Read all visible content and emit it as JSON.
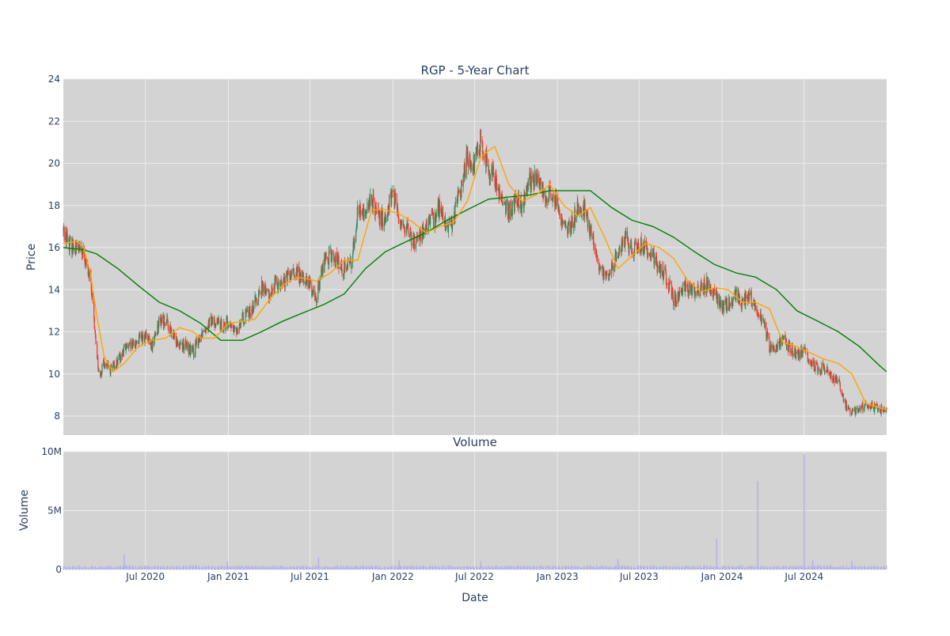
{
  "chart_data": [
    {
      "type": "candlestick",
      "title": "RGP - 5-Year Chart",
      "xlabel": "",
      "ylabel": "Price",
      "ylim": [
        7.1,
        24
      ],
      "yticks": [
        8,
        10,
        12,
        14,
        16,
        18,
        20,
        22,
        24
      ],
      "xlim": [
        "2020-01-01",
        "2024-12-31"
      ],
      "grid": true,
      "colors": {
        "plot_bg": "#d3d3d3",
        "grid": "#ebebeb",
        "increasing": "#2e8b57",
        "decreasing": "#ef3b2c",
        "ma_short": "#ffa500",
        "ma_long": "#008000",
        "text": "#2a3f5f"
      },
      "series": [
        {
          "kind": "close",
          "dates": [
            "2020-01-01",
            "2020-01-15",
            "2020-02-01",
            "2020-02-15",
            "2020-03-01",
            "2020-03-10",
            "2020-03-20",
            "2020-04-01",
            "2020-04-15",
            "2020-05-01",
            "2020-05-15",
            "2020-06-01",
            "2020-06-15",
            "2020-07-01",
            "2020-07-15",
            "2020-08-01",
            "2020-08-15",
            "2020-09-01",
            "2020-09-15",
            "2020-10-01",
            "2020-10-15",
            "2020-11-01",
            "2020-11-15",
            "2020-12-01",
            "2020-12-15",
            "2021-01-01",
            "2021-01-15",
            "2021-02-01",
            "2021-02-15",
            "2021-03-01",
            "2021-03-15",
            "2021-04-01",
            "2021-04-15",
            "2021-05-01",
            "2021-05-15",
            "2021-06-01",
            "2021-06-15",
            "2021-07-01",
            "2021-07-15",
            "2021-08-01",
            "2021-08-15",
            "2021-09-01",
            "2021-09-15",
            "2021-10-01",
            "2021-10-15",
            "2021-11-01",
            "2021-11-15",
            "2021-12-01",
            "2021-12-15",
            "2022-01-01",
            "2022-01-15",
            "2022-02-01",
            "2022-02-15",
            "2022-03-01",
            "2022-03-15",
            "2022-04-01",
            "2022-04-15",
            "2022-05-01",
            "2022-05-15",
            "2022-06-01",
            "2022-06-15",
            "2022-07-01",
            "2022-07-15",
            "2022-08-01",
            "2022-08-15",
            "2022-09-01",
            "2022-09-15",
            "2022-10-01",
            "2022-10-15",
            "2022-11-01",
            "2022-11-15",
            "2022-12-01",
            "2022-12-15",
            "2023-01-01",
            "2023-01-15",
            "2023-02-01",
            "2023-02-15",
            "2023-03-01",
            "2023-03-15",
            "2023-04-01",
            "2023-04-15",
            "2023-05-01",
            "2023-05-15",
            "2023-06-01",
            "2023-06-15",
            "2023-07-01",
            "2023-07-15",
            "2023-08-01",
            "2023-08-15",
            "2023-09-01",
            "2023-09-15",
            "2023-10-01",
            "2023-10-15",
            "2023-11-01",
            "2023-11-15",
            "2023-12-01",
            "2023-12-15",
            "2024-01-01",
            "2024-01-15",
            "2024-02-01",
            "2024-02-15",
            "2024-03-01",
            "2024-03-15",
            "2024-04-01",
            "2024-04-15",
            "2024-05-01",
            "2024-05-15",
            "2024-06-01",
            "2024-06-15",
            "2024-07-01",
            "2024-07-15",
            "2024-08-01",
            "2024-08-15",
            "2024-09-01",
            "2024-09-15",
            "2024-10-01",
            "2024-10-15",
            "2024-11-01",
            "2024-11-15",
            "2024-12-01",
            "2024-12-15",
            "2024-12-31"
          ],
          "values": [
            16.8,
            16.2,
            16.0,
            15.6,
            14.5,
            12.2,
            10.0,
            10.5,
            10.2,
            10.6,
            11.2,
            11.3,
            11.6,
            11.8,
            11.3,
            12.5,
            12.6,
            11.7,
            11.5,
            11.3,
            11.0,
            11.9,
            12.4,
            12.5,
            12.3,
            12.4,
            12.0,
            12.6,
            12.9,
            13.4,
            14.1,
            13.8,
            14.3,
            14.4,
            14.6,
            14.8,
            14.5,
            14.2,
            13.6,
            15.4,
            15.6,
            15.3,
            15.0,
            15.4,
            17.8,
            17.6,
            18.3,
            17.3,
            17.5,
            18.6,
            17.4,
            16.8,
            16.2,
            16.6,
            16.9,
            17.4,
            17.9,
            16.8,
            17.4,
            18.8,
            20.3,
            20.0,
            21.2,
            19.8,
            19.2,
            18.2,
            17.7,
            18.3,
            18.1,
            19.2,
            19.2,
            18.6,
            18.6,
            18.1,
            16.8,
            17.0,
            17.9,
            17.8,
            16.8,
            15.2,
            14.5,
            15.0,
            15.6,
            16.5,
            15.8,
            16.1,
            16.0,
            15.6,
            15.0,
            14.6,
            13.5,
            13.9,
            14.2,
            13.8,
            14.1,
            14.3,
            13.8,
            13.2,
            13.3,
            13.7,
            13.3,
            13.8,
            13.2,
            12.5,
            11.3,
            11.3,
            11.6,
            11.2,
            10.9,
            11.1,
            10.6,
            10.2,
            10.3,
            9.9,
            9.6,
            8.5,
            8.2,
            8.3,
            8.6,
            8.4,
            8.3,
            8.2
          ]
        },
        {
          "kind": "ma_short",
          "dates": [
            "2020-01-01",
            "2020-02-01",
            "2020-02-15",
            "2020-03-01",
            "2020-03-15",
            "2020-04-01",
            "2020-04-20",
            "2020-05-15",
            "2020-06-15",
            "2020-07-15",
            "2020-08-15",
            "2020-09-15",
            "2020-10-15",
            "2020-11-01",
            "2020-12-01",
            "2021-01-01",
            "2021-02-01",
            "2021-03-01",
            "2021-04-01",
            "2021-05-01",
            "2021-06-01",
            "2021-07-01",
            "2021-07-15",
            "2021-08-15",
            "2021-09-15",
            "2021-10-15",
            "2021-11-15",
            "2021-12-15",
            "2022-01-15",
            "2022-02-15",
            "2022-03-15",
            "2022-04-15",
            "2022-05-15",
            "2022-06-15",
            "2022-07-15",
            "2022-08-01",
            "2022-08-15",
            "2022-09-15",
            "2022-10-15",
            "2022-11-15",
            "2022-12-15",
            "2023-01-15",
            "2023-02-15",
            "2023-03-15",
            "2023-04-15",
            "2023-05-15",
            "2023-06-15",
            "2023-07-15",
            "2023-08-15",
            "2023-09-15",
            "2023-10-15",
            "2023-11-15",
            "2023-12-15",
            "2024-01-15",
            "2024-02-15",
            "2024-03-15",
            "2024-04-15",
            "2024-05-15",
            "2024-06-15",
            "2024-07-15",
            "2024-08-15",
            "2024-09-15",
            "2024-10-15",
            "2024-11-15",
            "2024-12-15",
            "2024-12-31"
          ],
          "values": [
            16.2,
            16.3,
            16.0,
            14.8,
            12.8,
            10.8,
            10.1,
            10.5,
            11.3,
            11.6,
            11.7,
            12.2,
            12.0,
            11.7,
            11.7,
            12.4,
            12.5,
            12.6,
            13.5,
            14.2,
            14.6,
            14.5,
            14.4,
            14.8,
            15.4,
            15.4,
            17.8,
            17.8,
            17.6,
            17.2,
            16.7,
            17.0,
            17.2,
            18.2,
            20.3,
            20.6,
            20.8,
            19.0,
            18.2,
            18.5,
            19.0,
            18.0,
            17.5,
            17.9,
            16.5,
            15.0,
            15.6,
            16.2,
            16.0,
            15.5,
            14.5,
            13.9,
            14.1,
            14.0,
            13.4,
            13.4,
            13.1,
            11.5,
            11.3,
            11.0,
            10.7,
            10.5,
            10.0,
            8.6,
            8.4,
            8.3
          ]
        },
        {
          "kind": "ma_long",
          "dates": [
            "2020-01-01",
            "2020-02-15",
            "2020-03-15",
            "2020-05-01",
            "2020-06-15",
            "2020-08-01",
            "2020-09-15",
            "2020-11-01",
            "2020-12-15",
            "2021-02-01",
            "2021-03-15",
            "2021-05-01",
            "2021-06-15",
            "2021-08-01",
            "2021-09-15",
            "2021-11-01",
            "2021-12-15",
            "2022-02-01",
            "2022-03-15",
            "2022-05-01",
            "2022-06-15",
            "2022-08-01",
            "2022-09-15",
            "2022-11-01",
            "2022-12-15",
            "2023-02-01",
            "2023-03-15",
            "2023-05-01",
            "2023-06-15",
            "2023-08-01",
            "2023-09-15",
            "2023-11-01",
            "2023-12-15",
            "2024-02-01",
            "2024-03-15",
            "2024-05-01",
            "2024-06-15",
            "2024-08-01",
            "2024-09-15",
            "2024-11-01",
            "2024-12-15",
            "2024-12-31"
          ],
          "values": [
            16.0,
            15.9,
            15.7,
            15.0,
            14.2,
            13.4,
            13.0,
            12.4,
            11.6,
            11.6,
            12.0,
            12.5,
            12.9,
            13.3,
            13.8,
            15.0,
            15.8,
            16.3,
            16.7,
            17.3,
            17.8,
            18.3,
            18.4,
            18.5,
            18.7,
            18.7,
            18.7,
            17.9,
            17.3,
            17.0,
            16.5,
            15.8,
            15.2,
            14.8,
            14.6,
            14.0,
            13.0,
            12.5,
            12.0,
            11.3,
            10.4,
            10.1
          ]
        }
      ]
    },
    {
      "type": "bar",
      "title": "Volume",
      "xlabel": "Date",
      "ylabel": "Volume",
      "ylim": [
        0,
        10000000
      ],
      "yticks": [
        0,
        5000000,
        10000000
      ],
      "ytick_labels": [
        "0",
        "5M",
        "10M"
      ],
      "xticks": [
        "2020-07-01",
        "2021-01-01",
        "2021-07-01",
        "2022-01-01",
        "2022-07-01",
        "2023-01-01",
        "2023-07-01",
        "2024-01-01",
        "2024-07-01"
      ],
      "xtick_labels": [
        "Jul 2020",
        "Jan 2021",
        "Jul 2021",
        "Jan 2022",
        "Jul 2022",
        "Jan 2023",
        "Jul 2023",
        "Jan 2024",
        "Jul 2024"
      ],
      "colors": {
        "bar": "#b0b0e8"
      },
      "spikes": [
        {
          "date": "2020-05-15",
          "value": 1300000
        },
        {
          "date": "2020-12-30",
          "value": 700000
        },
        {
          "date": "2021-07-20",
          "value": 1000000
        },
        {
          "date": "2022-01-15",
          "value": 800000
        },
        {
          "date": "2022-07-15",
          "value": 700000
        },
        {
          "date": "2023-05-15",
          "value": 900000
        },
        {
          "date": "2023-12-20",
          "value": 2600000
        },
        {
          "date": "2024-03-20",
          "value": 7500000
        },
        {
          "date": "2024-07-01",
          "value": 9800000
        },
        {
          "date": "2024-07-20",
          "value": 800000
        },
        {
          "date": "2024-10-15",
          "value": 700000
        }
      ],
      "baseline_value": 250000
    }
  ]
}
